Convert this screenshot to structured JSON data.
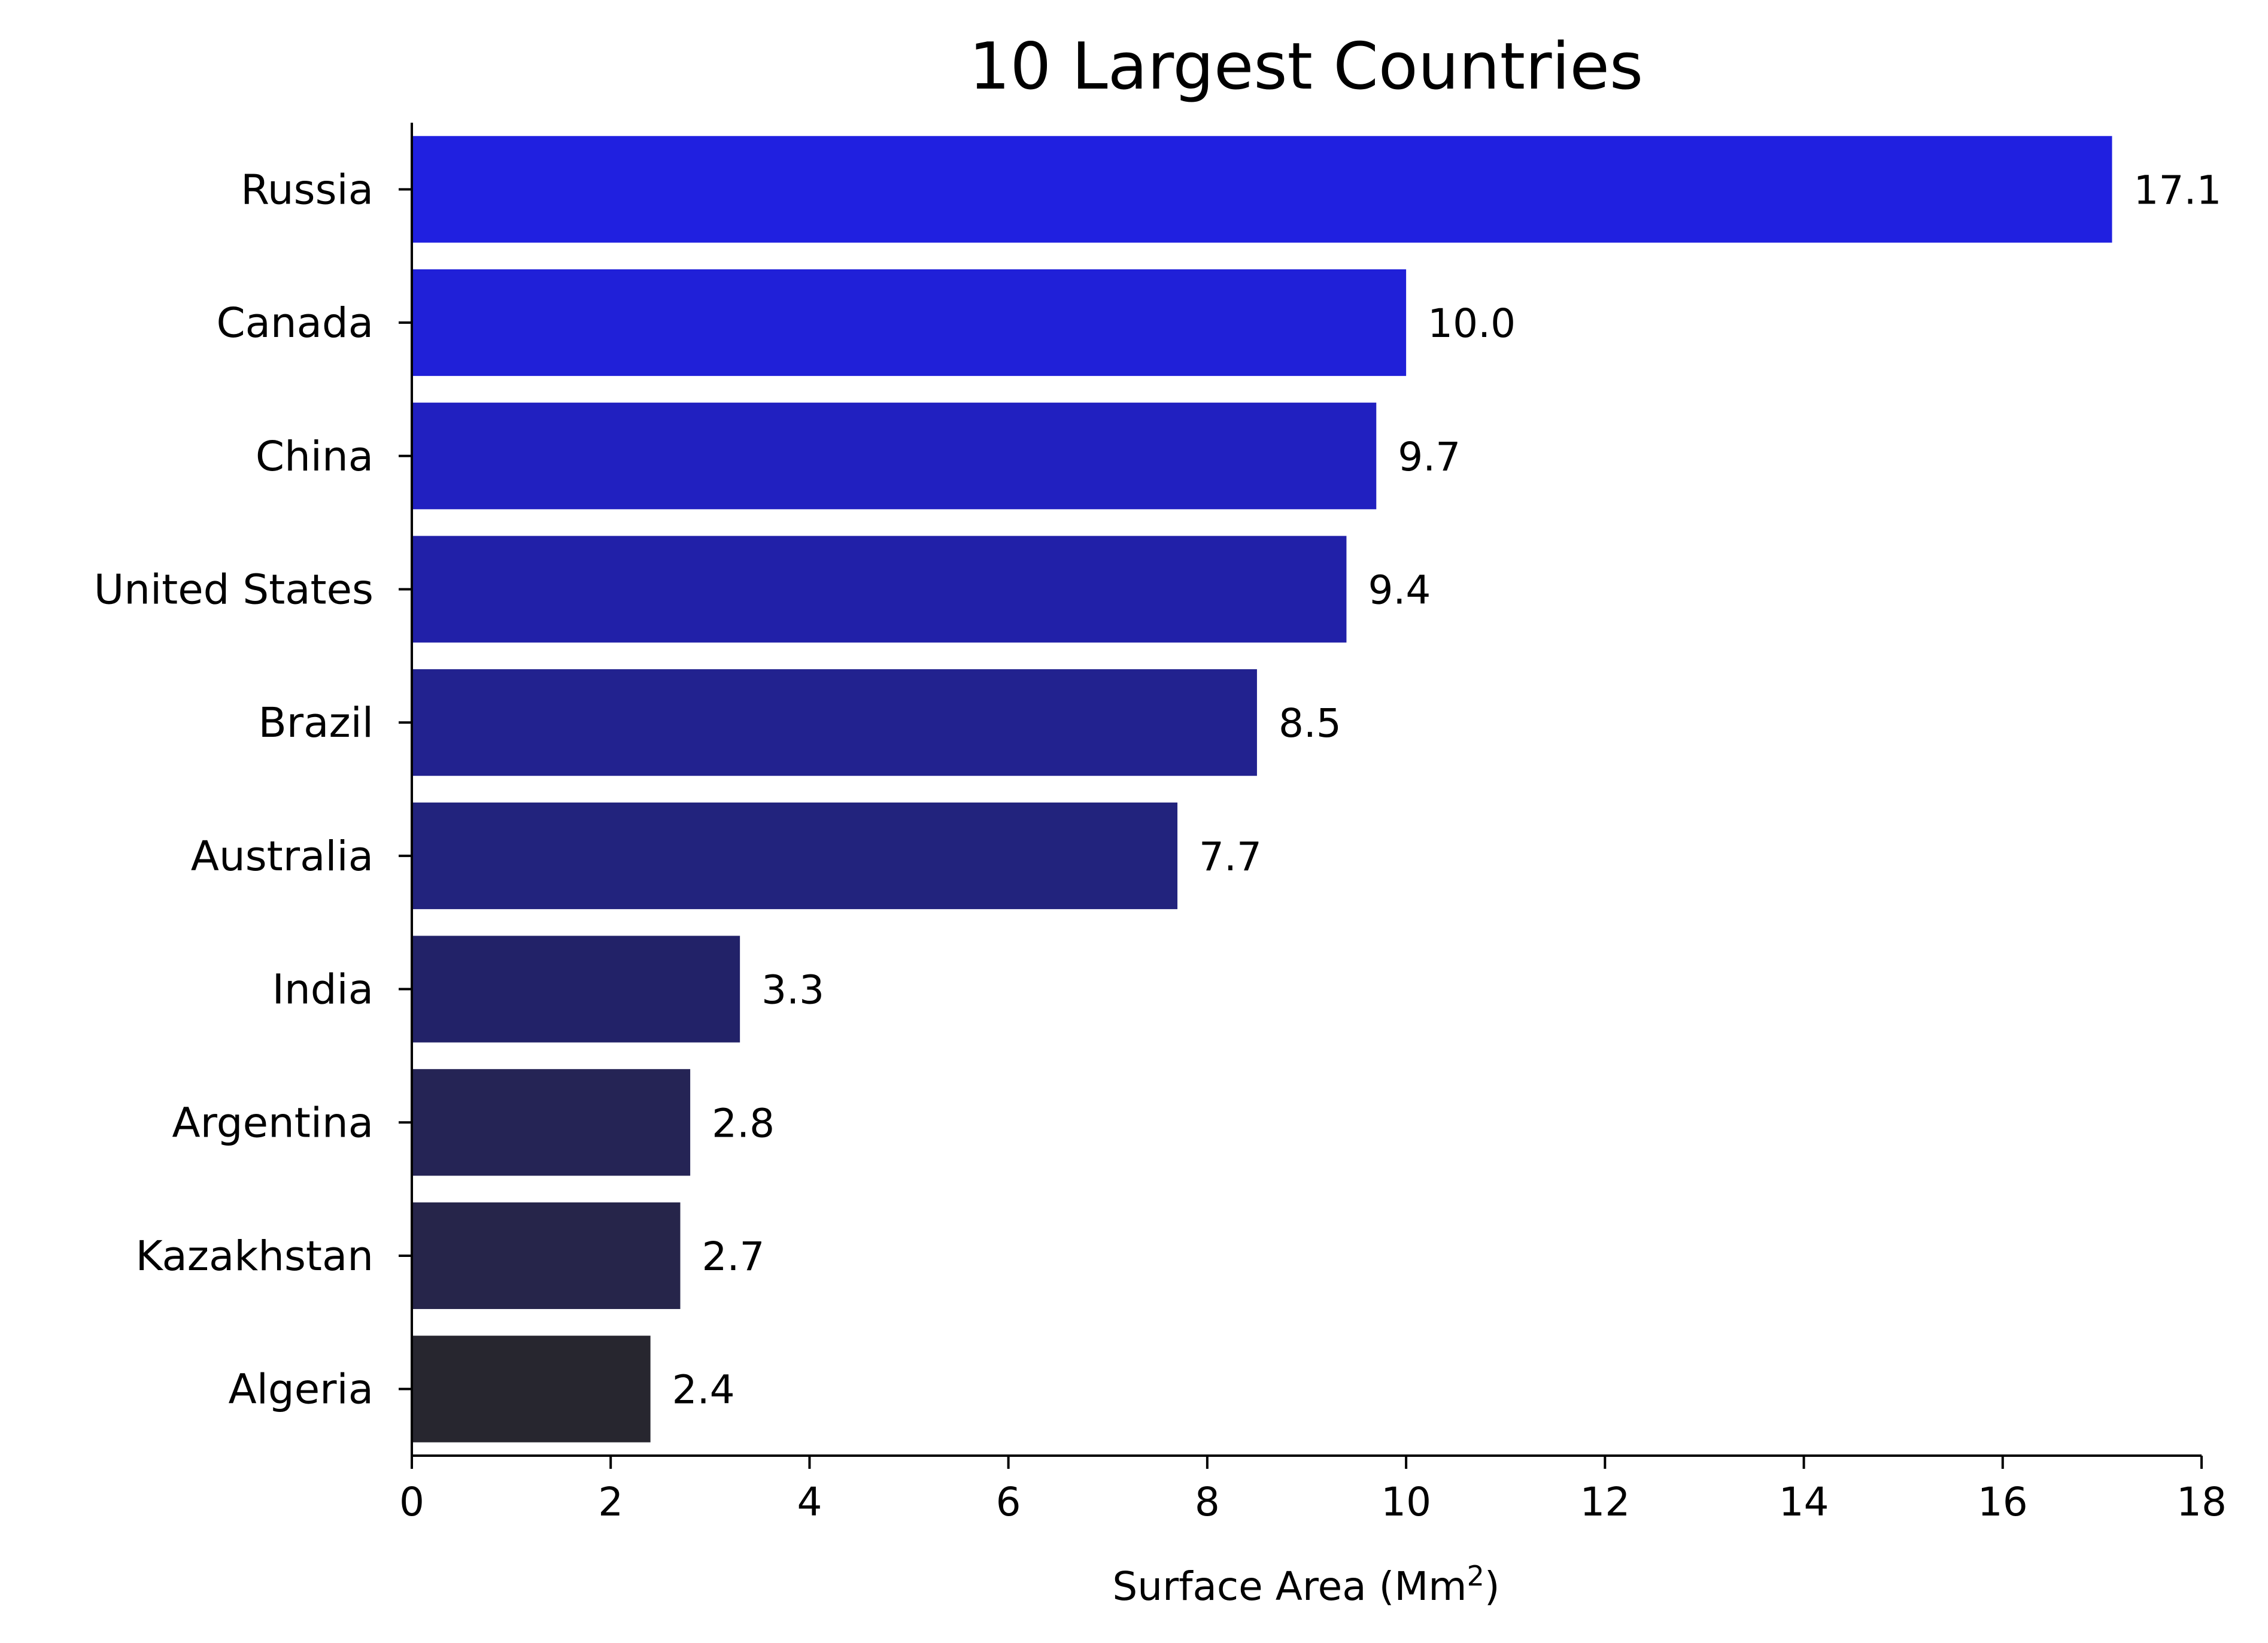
{
  "chart_data": {
    "type": "bar",
    "orientation": "horizontal",
    "title": "10 Largest Countries",
    "xlabel": "Surface Area (Mm",
    "xlabel_sup": "2",
    "xlabel_close": ")",
    "ylabel": "",
    "xlim": [
      0,
      18
    ],
    "xticks": [
      0,
      2,
      4,
      6,
      8,
      10,
      12,
      14,
      16,
      18
    ],
    "grid": false,
    "legend": "none",
    "categories": [
      "Russia",
      "Canada",
      "China",
      "United States",
      "Brazil",
      "Australia",
      "India",
      "Argentina",
      "Kazakhstan",
      "Algeria"
    ],
    "values": [
      17.1,
      10.0,
      9.7,
      9.4,
      8.5,
      7.7,
      3.3,
      2.8,
      2.7,
      2.4
    ],
    "value_labels": [
      "17.1",
      "10.0",
      "9.7",
      "9.4",
      "8.5",
      "7.7",
      "3.3",
      "2.8",
      "2.7",
      "2.4"
    ],
    "colors": [
      "#2020e0",
      "#2020d8",
      "#2120c0",
      "#2120a8",
      "#22228f",
      "#22237d",
      "#222268",
      "#252455",
      "#26254a",
      "#27262f"
    ]
  }
}
